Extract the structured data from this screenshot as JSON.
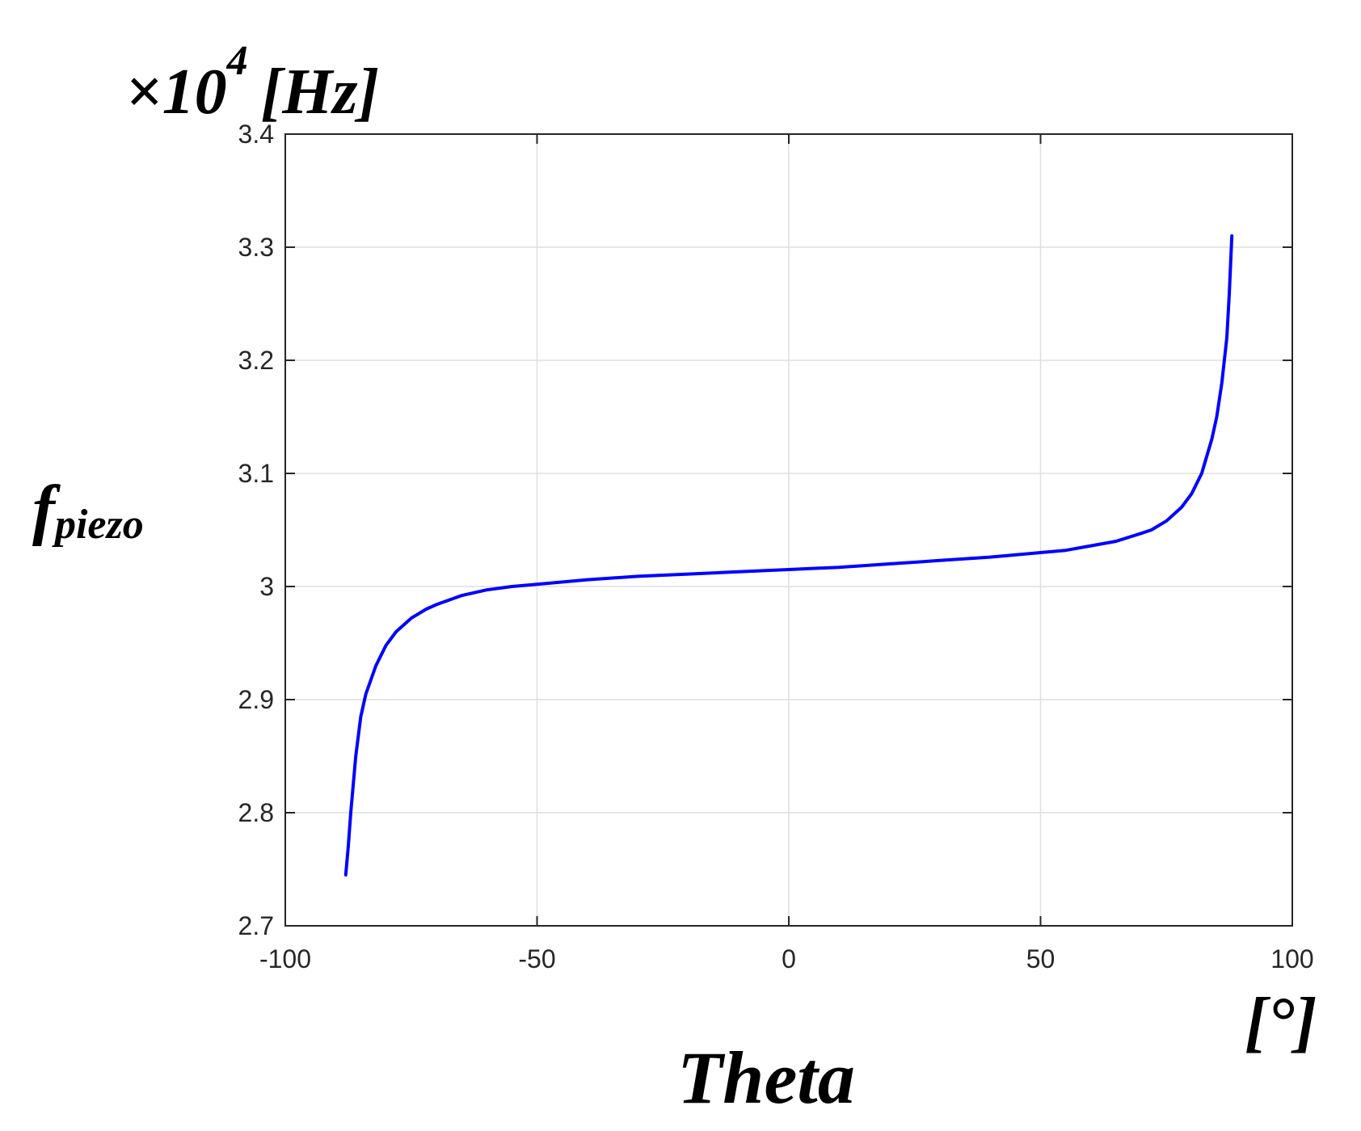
{
  "chart_data": {
    "type": "line",
    "title": "",
    "xlabel": "Theta",
    "x_unit": "[°]",
    "ylabel_main": "f",
    "ylabel_sub": "piezo",
    "y_exponent_prefix": "×10",
    "y_exponent_power": "4",
    "y_unit": "[Hz]",
    "xlim": [
      -100,
      100
    ],
    "ylim": [
      2.7,
      3.4
    ],
    "x_ticks": [
      -100,
      -50,
      0,
      50,
      100
    ],
    "x_tick_labels": [
      "-100",
      "-50",
      "0",
      "50",
      "100"
    ],
    "y_ticks": [
      2.7,
      2.8,
      2.9,
      3.0,
      3.1,
      3.2,
      3.3,
      3.4
    ],
    "y_tick_labels": [
      "2.7",
      "2.8",
      "2.9",
      "3",
      "3.1",
      "3.2",
      "3.3",
      "3.4"
    ],
    "grid": true,
    "line_color": "#0000ff",
    "series": [
      {
        "x": [
          -88,
          -87.5,
          -87,
          -86,
          -85,
          -84,
          -82,
          -80,
          -78,
          -75,
          -72,
          -70,
          -65,
          -60,
          -55,
          -50,
          -40,
          -30,
          -20,
          -10,
          0,
          10,
          20,
          30,
          40,
          50,
          55,
          60,
          65,
          70,
          72,
          75,
          78,
          80,
          82,
          84,
          85,
          86,
          87,
          87.5,
          88
        ],
        "y": [
          2.745,
          2.77,
          2.8,
          2.85,
          2.885,
          2.905,
          2.93,
          2.948,
          2.96,
          2.972,
          2.98,
          2.984,
          2.992,
          2.997,
          3.0,
          3.002,
          3.006,
          3.009,
          3.011,
          3.013,
          3.015,
          3.017,
          3.02,
          3.023,
          3.026,
          3.03,
          3.032,
          3.036,
          3.04,
          3.047,
          3.05,
          3.058,
          3.07,
          3.082,
          3.1,
          3.13,
          3.15,
          3.18,
          3.22,
          3.26,
          3.31
        ]
      }
    ]
  }
}
